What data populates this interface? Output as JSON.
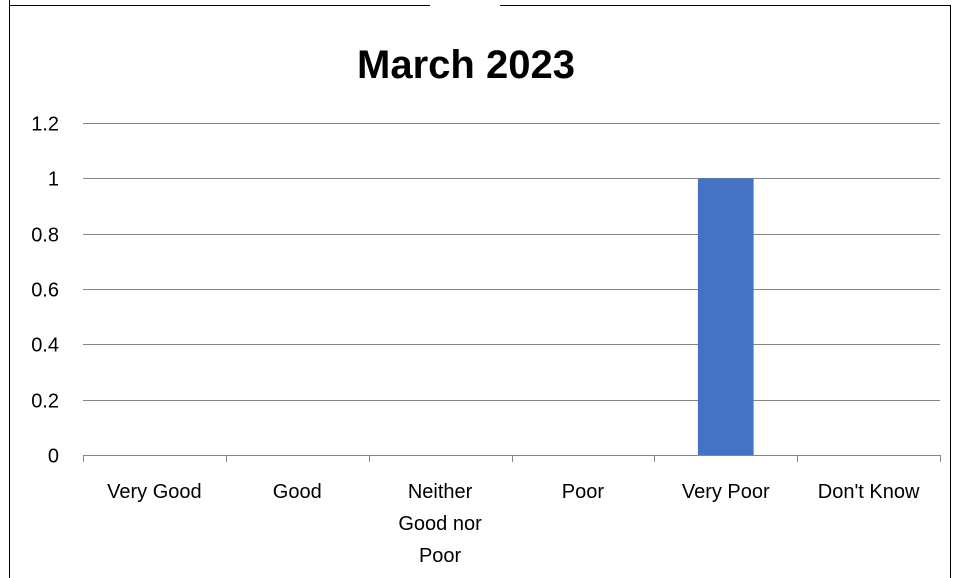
{
  "chart_data": {
    "type": "bar",
    "title": "March  2023",
    "categories": [
      "Very Good",
      "Good",
      "Neither Good nor Poor",
      "Poor",
      "Very Poor",
      "Don't Know"
    ],
    "category_label_lines": [
      [
        "Very Good"
      ],
      [
        "Good"
      ],
      [
        "Neither",
        "Good nor",
        "Poor"
      ],
      [
        "Poor"
      ],
      [
        "Very Poor"
      ],
      [
        "Don't Know"
      ]
    ],
    "series": [
      {
        "values": [
          0,
          0,
          0,
          0,
          1,
          0
        ],
        "color": "#4472C4"
      }
    ],
    "ylim": [
      0,
      1.2
    ],
    "yticks": [
      0,
      0.2,
      0.4,
      0.6,
      0.8,
      1,
      1.2
    ],
    "ytick_labels": [
      "0",
      "0.2",
      "0.4",
      "0.6",
      "0.8",
      "1",
      "1.2"
    ],
    "grid": true,
    "legend": "none",
    "gridline_color": "#868686",
    "axis_color": "#868686",
    "border_color": "#000000"
  }
}
